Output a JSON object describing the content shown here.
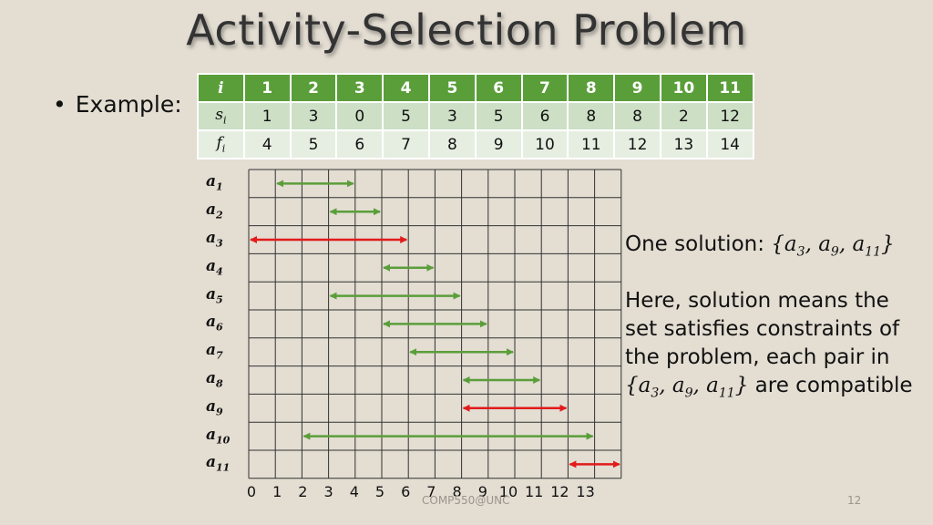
{
  "title": "Activity-Selection Problem",
  "example_label": "Example:",
  "table": {
    "row_labels": [
      "i",
      "s",
      "f"
    ],
    "row_label_subs": [
      "",
      "i",
      "i"
    ],
    "i": [
      "1",
      "2",
      "3",
      "4",
      "5",
      "6",
      "7",
      "8",
      "9",
      "10",
      "11"
    ],
    "s": [
      "1",
      "3",
      "0",
      "5",
      "3",
      "5",
      "6",
      "8",
      "8",
      "2",
      "12"
    ],
    "f": [
      "4",
      "5",
      "6",
      "7",
      "8",
      "9",
      "10",
      "11",
      "12",
      "13",
      "14"
    ]
  },
  "chart_data": {
    "type": "interval",
    "x_ticks": [
      "0",
      "1",
      "2",
      "3",
      "4",
      "5",
      "6",
      "7",
      "8",
      "9",
      "10",
      "11",
      "12",
      "13"
    ],
    "activities": [
      {
        "name": "a",
        "sub": "1",
        "start": 1,
        "finish": 4,
        "selected": false
      },
      {
        "name": "a",
        "sub": "2",
        "start": 3,
        "finish": 5,
        "selected": false
      },
      {
        "name": "a",
        "sub": "3",
        "start": 0,
        "finish": 6,
        "selected": true
      },
      {
        "name": "a",
        "sub": "4",
        "start": 5,
        "finish": 7,
        "selected": false
      },
      {
        "name": "a",
        "sub": "5",
        "start": 3,
        "finish": 8,
        "selected": false
      },
      {
        "name": "a",
        "sub": "6",
        "start": 5,
        "finish": 9,
        "selected": false
      },
      {
        "name": "a",
        "sub": "7",
        "start": 6,
        "finish": 10,
        "selected": false
      },
      {
        "name": "a",
        "sub": "8",
        "start": 8,
        "finish": 11,
        "selected": false
      },
      {
        "name": "a",
        "sub": "9",
        "start": 8,
        "finish": 12,
        "selected": true
      },
      {
        "name": "a",
        "sub": "10",
        "start": 2,
        "finish": 13,
        "selected": false
      },
      {
        "name": "a",
        "sub": "11",
        "start": 12,
        "finish": 14,
        "selected": true
      }
    ],
    "colors": {
      "selected": "#e21b1b",
      "other": "#5a9e3a",
      "grid": "#333333"
    }
  },
  "solution": {
    "prefix": "One solution: ",
    "set_open": "{",
    "set_close": "}",
    "elements": [
      {
        "name": "a",
        "sub": "3"
      },
      {
        "name": "a",
        "sub": "9"
      },
      {
        "name": "a",
        "sub": "11"
      }
    ]
  },
  "note": {
    "line1": "Here, solution means the",
    "line2": "set satisfies constraints of",
    "line3": "the problem, each pair in",
    "line4_suffix": " are compatible"
  },
  "footer": "COMP550@UNC",
  "page_number": "12"
}
